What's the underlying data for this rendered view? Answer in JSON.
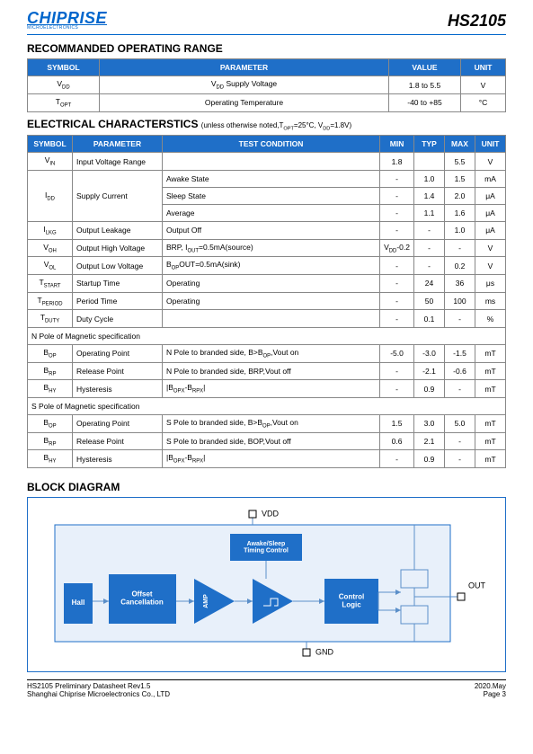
{
  "logo": {
    "main": "CHIPRISE",
    "sub": "MICROELECTRONICS"
  },
  "part_number": "HS2105",
  "sections": {
    "operating_range": {
      "title": "RECOMMANDED OPERATING RANGE",
      "headers": [
        "SYMBOL",
        "PARAMETER",
        "VALUE",
        "UNIT"
      ],
      "rows": [
        [
          "V<sub>DD</sub>",
          "V<sub>DD</sub> Supply Voltage",
          "1.8 to 5.5",
          "V"
        ],
        [
          "T<sub>OPT</sub>",
          "Operating Temperature",
          "-40 to +85",
          "°C"
        ]
      ]
    },
    "electrical": {
      "title": "ELECTRICAL CHARACTERSTICS",
      "note": "(unless otherwise noted,T<sub>OPT</sub>=25°C, V<sub>DD</sub>=1.8V)",
      "headers": [
        "SYMBOL",
        "PARAMETER",
        "TEST CONDITION",
        "MIN",
        "TYP",
        "MAX",
        "UNIT"
      ],
      "col_widths": [
        "50px",
        "100px",
        "auto",
        "34px",
        "34px",
        "34px",
        "34px"
      ],
      "rows": [
        {
          "cells": [
            "V<sub>IN</sub>",
            "Input Voltage Range",
            "",
            "1.8",
            "",
            "5.5",
            "V"
          ]
        },
        {
          "cells": [
            "I<sub>DD</sub>",
            {
              "rowspan": 3,
              "text": "Supply Current"
            },
            "Awake State",
            "-",
            "1.0",
            "1.5",
            "mA"
          ],
          "symbol_rowspan": 3
        },
        {
          "cells": [
            null,
            null,
            "Sleep State",
            "-",
            "1.4",
            "2.0",
            "μA"
          ]
        },
        {
          "cells": [
            null,
            null,
            "Average",
            "-",
            "1.1",
            "1.6",
            "μA"
          ]
        },
        {
          "cells": [
            "I<sub>LKG</sub>",
            "Output Leakage",
            "Output Off",
            "-",
            "-",
            "1.0",
            "μA"
          ]
        },
        {
          "cells": [
            "V<sub>OH</sub>",
            "Output High Voltage",
            "B<B<sub>RP</sub>, I<sub>OUT</sub>=0.5mA(source)",
            "V<sub>DD</sub>-0.2",
            "-",
            "-",
            "V"
          ]
        },
        {
          "cells": [
            "V<sub>OL</sub>",
            "Output Low Voltage",
            "B<sub>OP</sub><B, I<sub>OUT</sub>=0.5mA(sink)",
            "-",
            "-",
            "0.2",
            "V"
          ]
        },
        {
          "cells": [
            "T<sub>START</sub>",
            "Startup Time",
            "Operating",
            "-",
            "24",
            "36",
            "μs"
          ]
        },
        {
          "cells": [
            "T<sub>PERIOD</sub>",
            "Period Time",
            "Operating",
            "-",
            "50",
            "100",
            "ms"
          ]
        },
        {
          "cells": [
            "T<sub>DUTY</sub>",
            "Duty Cycle",
            "",
            "-",
            "0.1",
            "-",
            "%"
          ]
        }
      ],
      "n_pole_label": "N Pole of Magnetic specification",
      "n_pole_rows": [
        [
          "B<sub>OP</sub>",
          "Operating Point",
          "N Pole to branded side, B>B<sub>OP</sub>,Vout on",
          "-5.0",
          "-3.0",
          "-1.5",
          "mT"
        ],
        [
          "B<sub>RP</sub>",
          "Release Point",
          "N Pole to branded side, B<B<sub>RP</sub>,Vout off",
          "-",
          "-2.1",
          "-0.6",
          "mT"
        ],
        [
          "B<sub>HY</sub>",
          "Hysteresis",
          "|B<sub>OPX</sub>-B<sub>RPX</sub>|",
          "-",
          "0.9",
          "-",
          "mT"
        ]
      ],
      "s_pole_label": "S Pole of Magnetic specification",
      "s_pole_rows": [
        [
          "B<sub>OP</sub>",
          "Operating Point",
          "S Pole to branded side, B>B<sub>OP</sub>,Vout on",
          "1.5",
          "3.0",
          "5.0",
          "mT"
        ],
        [
          "B<sub>RP</sub>",
          "Release Point",
          "S Pole to branded side, B<B<sub>OP</sub>,Vout off",
          "0.6",
          "2.1",
          "-",
          "mT"
        ],
        [
          "B<sub>HY</sub>",
          "Hysteresis",
          "|B<sub>OPX</sub>-B<sub>RPX</sub>|",
          "-",
          "0.9",
          "-",
          "mT"
        ]
      ]
    },
    "block_diagram": {
      "title": "BLOCK DIAGRAM",
      "labels": {
        "vdd": "VDD",
        "gnd": "GND",
        "out": "OUT",
        "hall": "Hall",
        "offset": "Offset\nCancellation",
        "amp": "AMP",
        "timing": "Awake/Sleep\nTiming Control",
        "control": "Control\nLogic"
      },
      "colors": {
        "border": "#1f6fc8",
        "block_fill": "#1f6fc8",
        "block_text": "#ffffff",
        "bg": "#e8f0fa",
        "line": "#5b8fc9"
      }
    }
  },
  "footer": {
    "left1": "HS2105 Preliminary Datasheet Rev1.5",
    "left2": "Shanghai Chiprise Microelectronics Co., LTD",
    "right1": "2020.May",
    "right2": "Page 3"
  }
}
